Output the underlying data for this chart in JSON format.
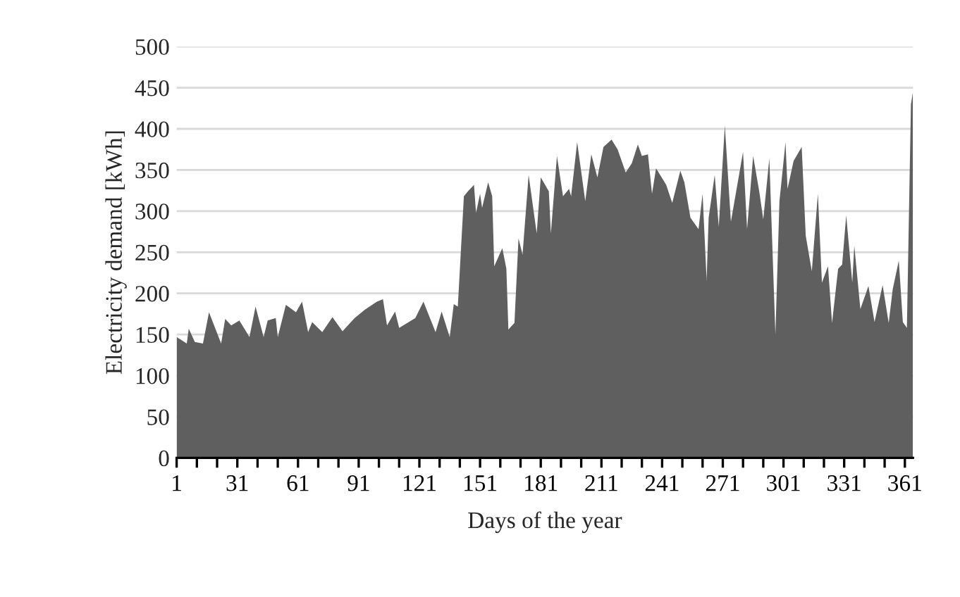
{
  "chart_data": {
    "type": "area",
    "xlabel": "Days of the year",
    "ylabel": "Electricity demand [kWh]",
    "x": [
      1,
      6,
      7,
      10,
      14,
      17,
      23,
      25,
      28,
      32,
      37,
      40,
      44,
      46,
      50,
      51,
      55,
      60,
      63,
      66,
      68,
      73,
      78,
      83,
      89,
      94,
      100,
      103,
      105,
      109,
      111,
      119,
      123,
      129,
      132,
      136,
      138,
      140,
      143,
      145,
      148,
      149,
      151,
      152,
      155,
      157,
      158,
      162,
      164,
      165,
      168,
      170,
      172,
      175,
      179,
      181,
      185,
      186,
      189,
      192,
      195,
      196,
      199,
      203,
      206,
      209,
      212,
      216,
      219,
      223,
      226,
      229,
      231,
      234,
      236,
      238,
      243,
      246,
      250,
      252,
      255,
      259,
      261,
      263,
      264,
      267,
      269,
      272,
      275,
      281,
      283,
      286,
      289,
      291,
      294,
      297,
      299,
      302,
      303,
      306,
      310,
      312,
      315,
      318,
      320,
      323,
      325,
      328,
      330,
      332,
      335,
      336,
      339,
      343,
      346,
      350,
      353,
      355,
      358,
      360,
      362,
      364,
      365
    ],
    "series": [
      {
        "color": "#5f5f5f",
        "values": [
          147,
          139,
          157,
          141,
          139,
          177,
          139,
          169,
          161,
          167,
          147,
          184,
          147,
          167,
          170,
          147,
          186,
          177,
          190,
          153,
          165,
          153,
          171,
          154,
          170,
          180,
          190,
          193,
          161,
          178,
          158,
          170,
          190,
          153,
          178,
          147,
          187,
          184,
          318,
          324,
          332,
          298,
          321,
          304,
          335,
          318,
          233,
          255,
          230,
          156,
          164,
          267,
          247,
          344,
          273,
          341,
          324,
          273,
          367,
          318,
          327,
          318,
          384,
          312,
          369,
          341,
          378,
          387,
          375,
          347,
          358,
          381,
          367,
          369,
          321,
          352,
          332,
          310,
          349,
          335,
          292,
          278,
          321,
          216,
          292,
          344,
          281,
          404,
          287,
          372,
          278,
          367,
          324,
          290,
          364,
          150,
          312,
          384,
          327,
          361,
          378,
          270,
          227,
          321,
          213,
          233,
          164,
          230,
          235,
          295,
          213,
          258,
          181,
          209,
          165,
          210,
          164,
          205,
          240,
          165,
          158,
          430,
          445
        ]
      }
    ],
    "xlim": [
      1,
      365
    ],
    "xticks": [
      1,
      {
        "value": 11,
        "label": null
      },
      {
        "value": 21,
        "label": null
      },
      31,
      {
        "value": 41,
        "label": null
      },
      {
        "value": 51,
        "label": null
      },
      61,
      {
        "value": 71,
        "label": null
      },
      {
        "value": 81,
        "label": null
      },
      91,
      {
        "value": 101,
        "label": null
      },
      {
        "value": 111,
        "label": null
      },
      121,
      {
        "value": 131,
        "label": null
      },
      {
        "value": 141,
        "label": null
      },
      151,
      {
        "value": 161,
        "label": null
      },
      {
        "value": 171,
        "label": null
      },
      181,
      {
        "value": 191,
        "label": null
      },
      {
        "value": 201,
        "label": null
      },
      211,
      {
        "value": 221,
        "label": null
      },
      {
        "value": 231,
        "label": null
      },
      241,
      {
        "value": 251,
        "label": null
      },
      {
        "value": 261,
        "label": null
      },
      271,
      {
        "value": 281,
        "label": null
      },
      {
        "value": 291,
        "label": null
      },
      301,
      {
        "value": 311,
        "label": null
      },
      {
        "value": 321,
        "label": null
      },
      331,
      {
        "value": 341,
        "label": null
      },
      {
        "value": 351,
        "label": null
      },
      361
    ],
    "ylim": [
      0,
      500
    ],
    "yticks": [
      0,
      50,
      100,
      150,
      200,
      250,
      300,
      350,
      400,
      450,
      500
    ],
    "grid": "y",
    "legend": false
  }
}
